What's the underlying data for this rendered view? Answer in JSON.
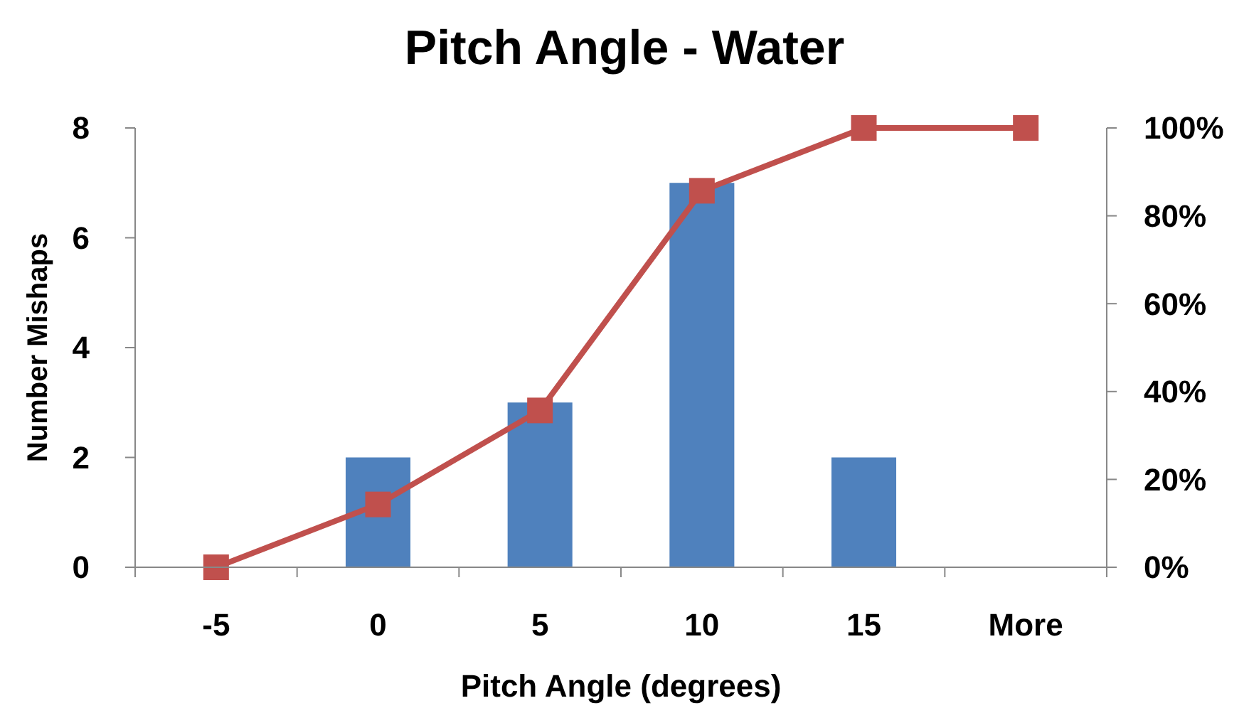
{
  "chart_data": {
    "type": "bar",
    "title": "Pitch Angle - Water",
    "xlabel": "Pitch Angle (degrees)",
    "ylabel": "Number Mishaps",
    "categories": [
      "-5",
      "0",
      "5",
      "10",
      "15",
      "More"
    ],
    "series": [
      {
        "color": "#4f81bd",
        "values": [
          0,
          2,
          3,
          7,
          2,
          0
        ]
      },
      {
        "type": "line",
        "axis": "y2",
        "color": "#c0504d",
        "marker": "square",
        "line_style": "solid",
        "values": [
          0,
          14.3,
          35.7,
          85.7,
          100,
          100
        ]
      }
    ],
    "ylim": [
      0,
      8
    ],
    "yticks": [
      0,
      2,
      4,
      6,
      8
    ],
    "y2lim": [
      0,
      100
    ],
    "y2ticks": [
      {
        "value": 0,
        "label": "0%"
      },
      {
        "value": 20,
        "label": "20%"
      },
      {
        "value": 40,
        "label": "40%"
      },
      {
        "value": 60,
        "label": "60%"
      },
      {
        "value": 80,
        "label": "80%"
      },
      {
        "value": 100,
        "label": "100%"
      }
    ],
    "grid": false
  }
}
